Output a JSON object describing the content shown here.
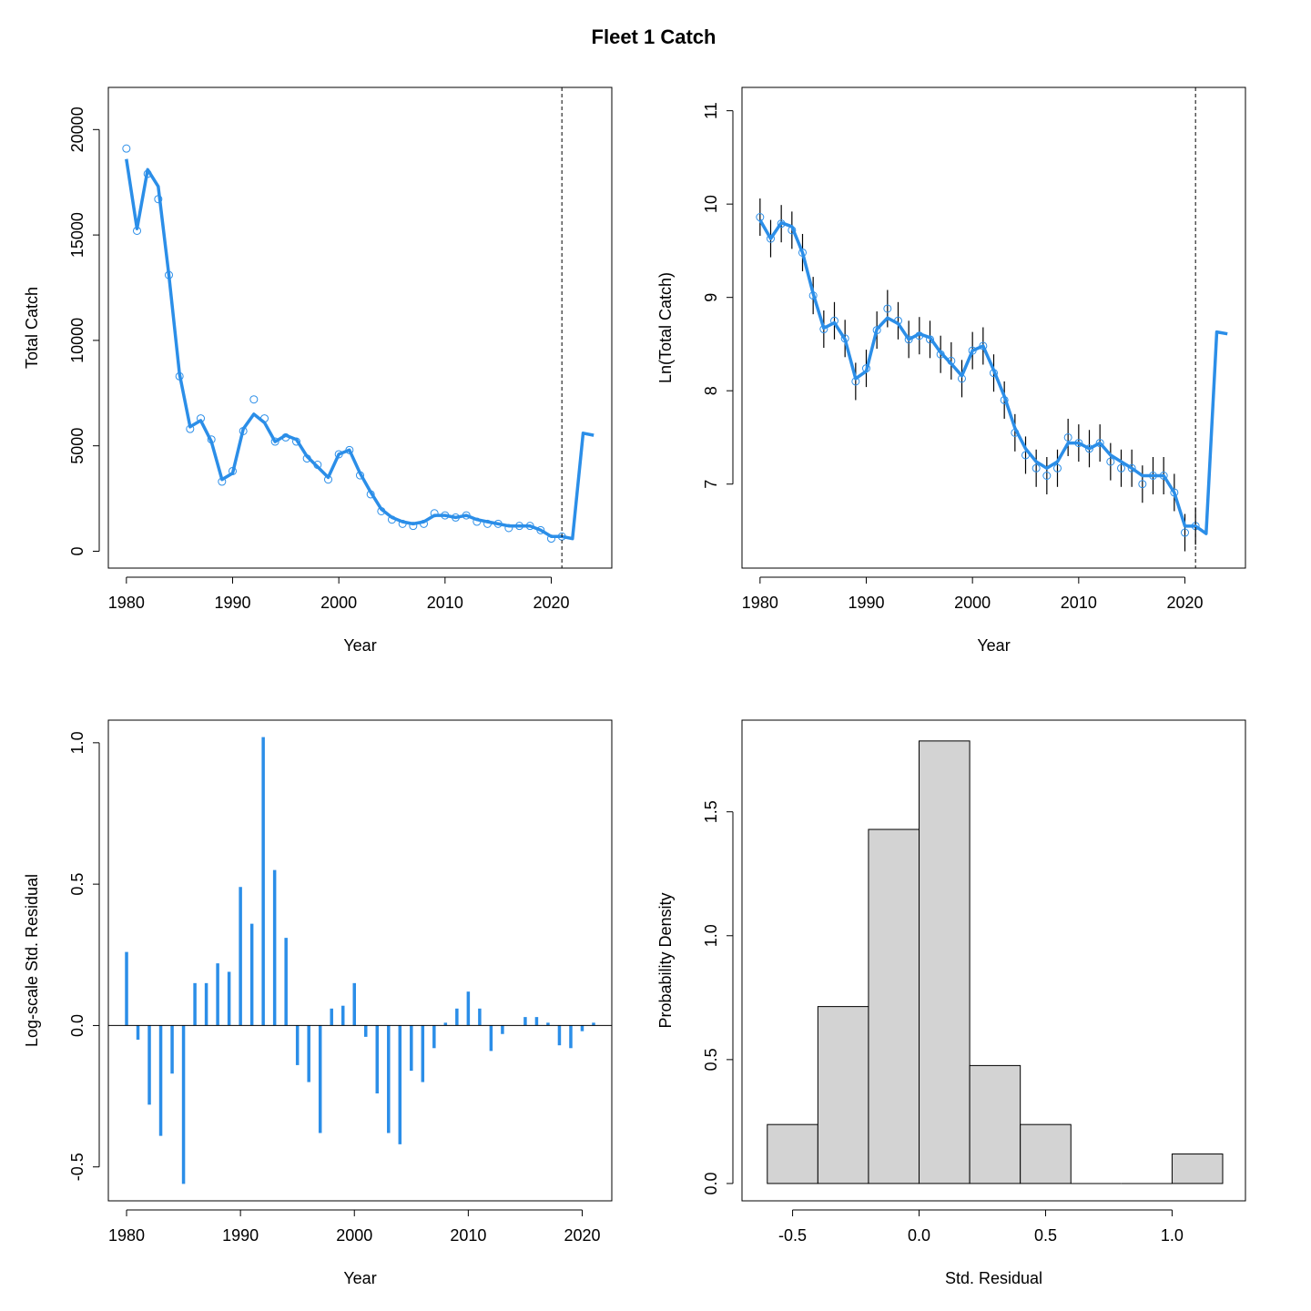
{
  "figure": {
    "title": "Fleet 1 Catch"
  },
  "colors": {
    "series": "#2b8ee8",
    "errorbar": "#000000",
    "hist_fill": "#d3d3d3",
    "refline": "#000000"
  },
  "chart_data": [
    {
      "id": "catch",
      "type": "line",
      "title": "",
      "xlabel": "Year",
      "ylabel": "Total Catch",
      "xlim": [
        1978.3,
        2025.7
      ],
      "ylim": [
        -800,
        22000
      ],
      "xticks": [
        1980,
        1990,
        2000,
        2010,
        2020
      ],
      "yticks": [
        0,
        5000,
        10000,
        15000,
        20000
      ],
      "vline": 2021,
      "series": [
        {
          "kind": "predicted-line",
          "x": [
            1980,
            1981,
            1982,
            1983,
            1984,
            1985,
            1986,
            1987,
            1988,
            1989,
            1990,
            1991,
            1992,
            1993,
            1994,
            1995,
            1996,
            1997,
            1998,
            1999,
            2000,
            2001,
            2002,
            2003,
            2004,
            2005,
            2006,
            2007,
            2008,
            2009,
            2010,
            2011,
            2012,
            2013,
            2014,
            2015,
            2016,
            2017,
            2018,
            2019,
            2020,
            2021,
            2022,
            2023,
            2024
          ],
          "y": [
            18600,
            15300,
            18100,
            17300,
            13100,
            8400,
            5900,
            6200,
            5200,
            3400,
            3700,
            5800,
            6500,
            6100,
            5200,
            5500,
            5300,
            4500,
            4000,
            3500,
            4600,
            4800,
            3700,
            2800,
            2000,
            1600,
            1400,
            1300,
            1400,
            1700,
            1700,
            1600,
            1700,
            1500,
            1400,
            1300,
            1200,
            1200,
            1200,
            1000,
            700,
            700,
            600,
            5600,
            5500
          ]
        },
        {
          "kind": "observed-points",
          "x": [
            1980,
            1981,
            1982,
            1983,
            1984,
            1985,
            1986,
            1987,
            1988,
            1989,
            1990,
            1991,
            1992,
            1993,
            1994,
            1995,
            1996,
            1997,
            1998,
            1999,
            2000,
            2001,
            2002,
            2003,
            2004,
            2005,
            2006,
            2007,
            2008,
            2009,
            2010,
            2011,
            2012,
            2013,
            2014,
            2015,
            2016,
            2017,
            2018,
            2019,
            2020,
            2021
          ],
          "y": [
            19100,
            15200,
            17900,
            16700,
            13100,
            8300,
            5800,
            6300,
            5300,
            3300,
            3800,
            5700,
            7200,
            6300,
            5200,
            5400,
            5200,
            4400,
            4100,
            3400,
            4600,
            4800,
            3600,
            2700,
            1900,
            1500,
            1300,
            1200,
            1300,
            1800,
            1700,
            1600,
            1700,
            1400,
            1300,
            1300,
            1100,
            1200,
            1200,
            1000,
            600,
            700
          ]
        }
      ]
    },
    {
      "id": "log-catch",
      "type": "line",
      "title": "",
      "xlabel": "Year",
      "ylabel": "Ln(Total Catch)",
      "xlim": [
        1978.3,
        2025.7
      ],
      "ylim": [
        6.1,
        11.25
      ],
      "xticks": [
        1980,
        1990,
        2000,
        2010,
        2020
      ],
      "yticks": [
        7,
        8,
        9,
        10,
        11
      ],
      "vline": 2021,
      "errorbar_halfwidth": 0.2,
      "series": [
        {
          "kind": "predicted-line",
          "x": [
            1980,
            1981,
            1982,
            1983,
            1984,
            1985,
            1986,
            1987,
            1988,
            1989,
            1990,
            1991,
            1992,
            1993,
            1994,
            1995,
            1996,
            1997,
            1998,
            1999,
            2000,
            2001,
            2002,
            2003,
            2004,
            2005,
            2006,
            2007,
            2008,
            2009,
            2010,
            2011,
            2012,
            2013,
            2014,
            2015,
            2016,
            2017,
            2018,
            2019,
            2020,
            2021,
            2022,
            2023,
            2024
          ],
          "y": [
            9.83,
            9.63,
            9.8,
            9.76,
            9.48,
            9.04,
            8.67,
            8.73,
            8.55,
            8.13,
            8.21,
            8.66,
            8.78,
            8.72,
            8.55,
            8.61,
            8.57,
            8.41,
            8.29,
            8.16,
            8.43,
            8.48,
            8.22,
            7.94,
            7.6,
            7.38,
            7.24,
            7.17,
            7.24,
            7.44,
            7.44,
            7.38,
            7.44,
            7.31,
            7.24,
            7.17,
            7.09,
            7.09,
            7.09,
            6.91,
            6.55,
            6.55,
            6.47,
            8.63,
            8.61
          ]
        },
        {
          "kind": "observed-points",
          "x": [
            1980,
            1981,
            1982,
            1983,
            1984,
            1985,
            1986,
            1987,
            1988,
            1989,
            1990,
            1991,
            1992,
            1993,
            1994,
            1995,
            1996,
            1997,
            1998,
            1999,
            2000,
            2001,
            2002,
            2003,
            2004,
            2005,
            2006,
            2007,
            2008,
            2009,
            2010,
            2011,
            2012,
            2013,
            2014,
            2015,
            2016,
            2017,
            2018,
            2019,
            2020,
            2021
          ],
          "y": [
            9.86,
            9.63,
            9.79,
            9.72,
            9.48,
            9.02,
            8.66,
            8.75,
            8.56,
            8.1,
            8.24,
            8.65,
            8.88,
            8.75,
            8.55,
            8.59,
            8.55,
            8.39,
            8.32,
            8.13,
            8.43,
            8.48,
            8.19,
            7.9,
            7.55,
            7.31,
            7.17,
            7.09,
            7.17,
            7.5,
            7.44,
            7.38,
            7.44,
            7.24,
            7.17,
            7.17,
            7.0,
            7.09,
            7.09,
            6.91,
            6.48,
            6.55
          ]
        }
      ]
    },
    {
      "id": "residuals",
      "type": "bar",
      "title": "",
      "xlabel": "Year",
      "ylabel": "Log-scale Std. Residual",
      "xlim": [
        1978.4,
        2022.6
      ],
      "ylim": [
        -0.62,
        1.08
      ],
      "xticks": [
        1980,
        1990,
        2000,
        2010,
        2020
      ],
      "yticks": [
        -0.5,
        0.0,
        0.5,
        1.0
      ],
      "ytick_labels": [
        "-0.5",
        "0.0",
        "0.5",
        "1.0"
      ],
      "x": [
        1980,
        1981,
        1982,
        1983,
        1984,
        1985,
        1986,
        1987,
        1988,
        1989,
        1990,
        1991,
        1992,
        1993,
        1994,
        1995,
        1996,
        1997,
        1998,
        1999,
        2000,
        2001,
        2002,
        2003,
        2004,
        2005,
        2006,
        2007,
        2008,
        2009,
        2010,
        2011,
        2012,
        2013,
        2014,
        2015,
        2016,
        2017,
        2018,
        2019,
        2020,
        2021
      ],
      "values": [
        0.26,
        -0.05,
        -0.28,
        -0.39,
        -0.17,
        -0.56,
        0.15,
        0.15,
        0.22,
        0.19,
        0.49,
        0.36,
        1.02,
        0.55,
        0.31,
        -0.14,
        -0.2,
        -0.38,
        0.06,
        0.07,
        0.15,
        -0.04,
        -0.24,
        -0.38,
        -0.42,
        -0.16,
        -0.2,
        -0.08,
        0.01,
        0.06,
        0.12,
        0.06,
        -0.09,
        -0.03,
        0.0,
        0.03,
        0.03,
        0.01,
        -0.07,
        -0.08,
        -0.02,
        0.01
      ]
    },
    {
      "id": "histogram",
      "type": "histogram",
      "title": "",
      "xlabel": "Std. Residual",
      "ylabel": "Probability Density",
      "xlim": [
        -0.7,
        1.29
      ],
      "ylim": [
        -0.07,
        1.87
      ],
      "xticks": [
        -0.5,
        0.0,
        0.5,
        1.0
      ],
      "xtick_labels": [
        "-0.5",
        "0.0",
        "0.5",
        "1.0"
      ],
      "yticks": [
        0.0,
        0.5,
        1.0,
        1.5
      ],
      "ytick_labels": [
        "0.0",
        "0.5",
        "1.0",
        "1.5"
      ],
      "bin_edges": [
        -0.6,
        -0.4,
        -0.2,
        0.0,
        0.2,
        0.4,
        0.6,
        0.8,
        1.0,
        1.2
      ],
      "density": [
        0.238,
        0.714,
        1.429,
        1.786,
        0.476,
        0.238,
        0.0,
        0.0,
        0.119
      ]
    }
  ]
}
